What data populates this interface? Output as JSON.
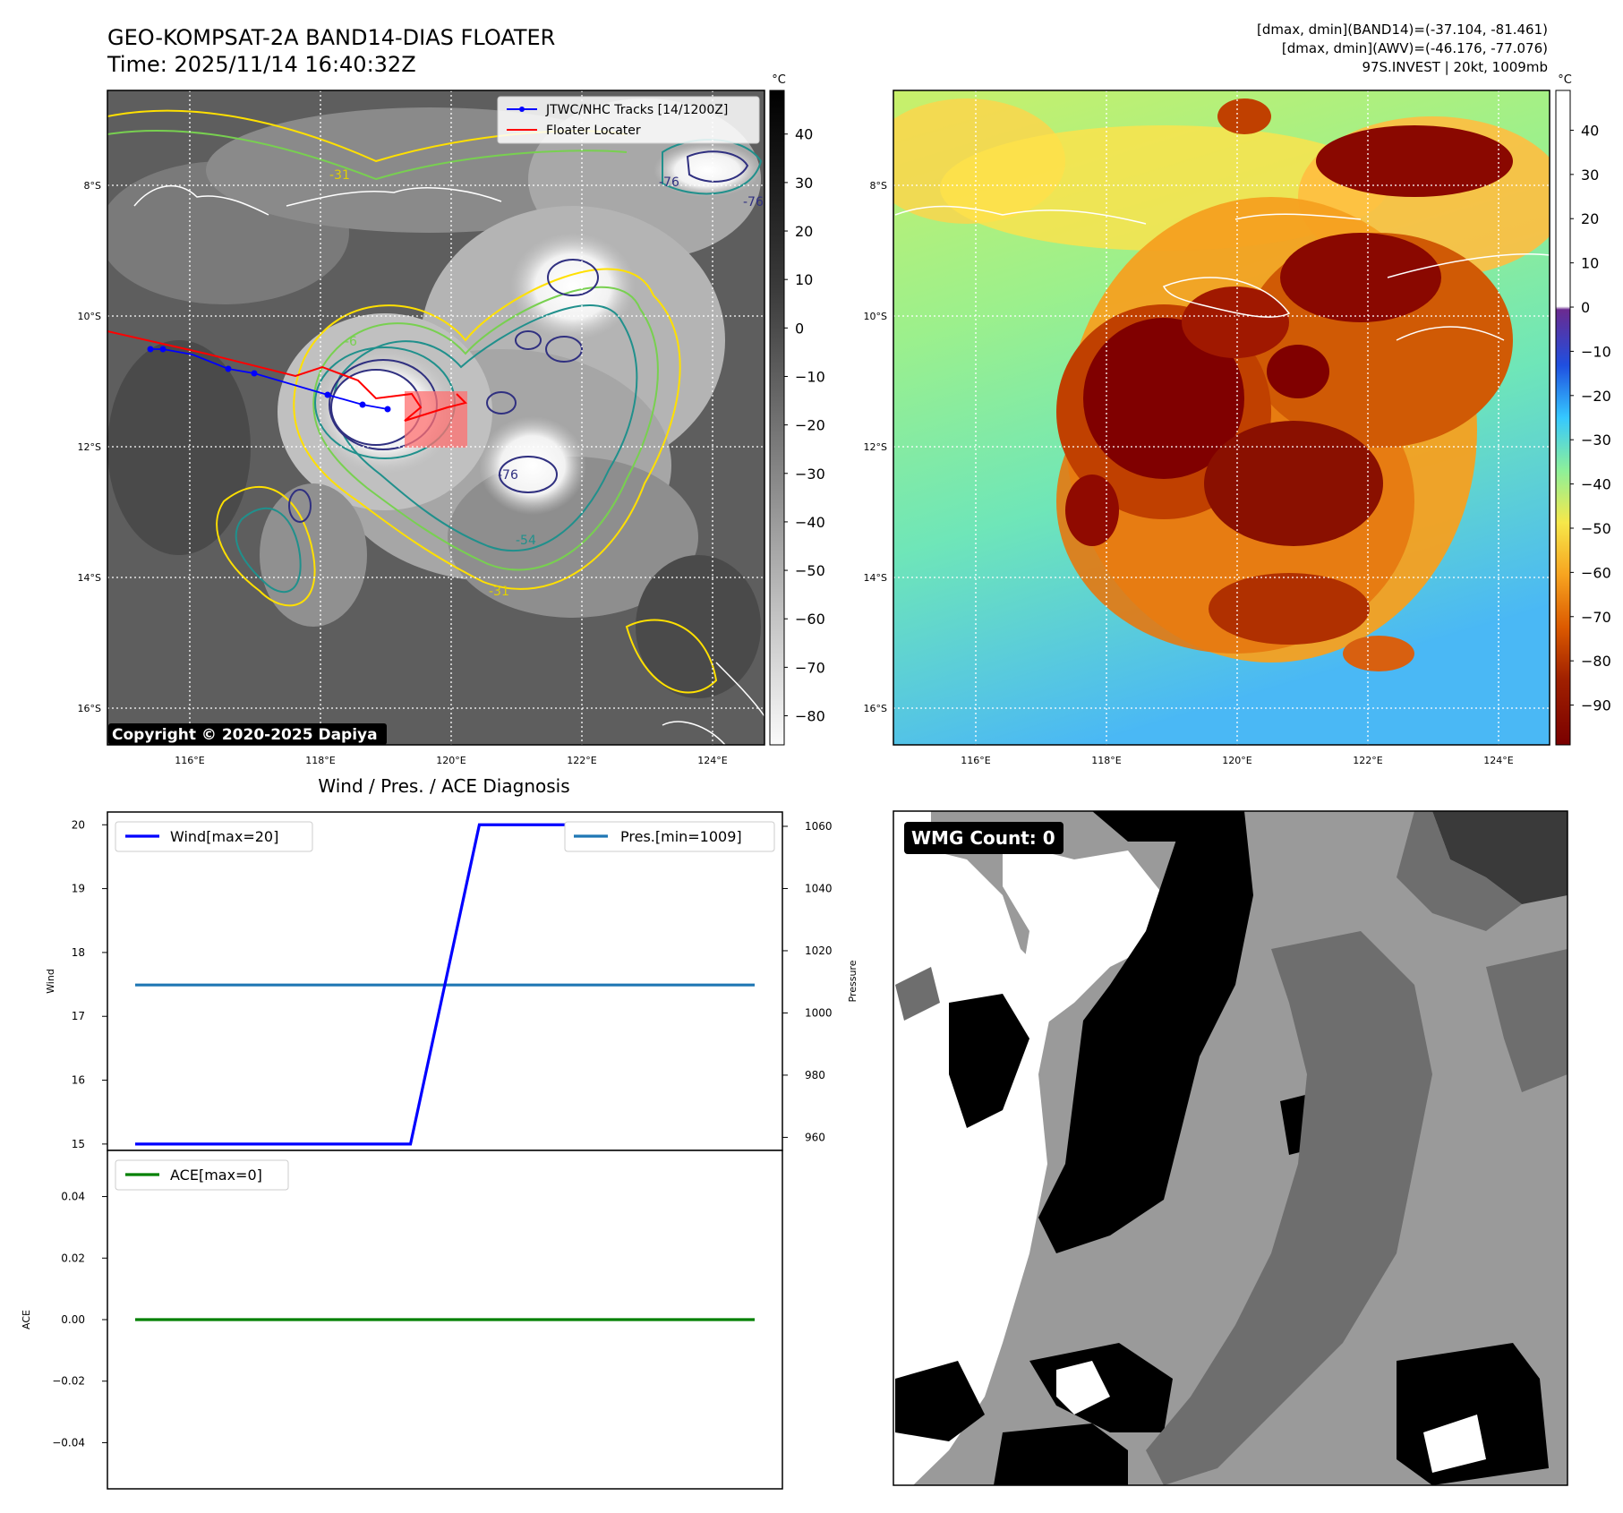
{
  "header": {
    "title_line1": "GEO-KOMPSAT-2A BAND14-DIAS FLOATER",
    "title_line2": "Time: 2025/11/14 16:40:32Z",
    "stats_line1": "[dmax, dmin](BAND14)=(-37.104, -81.461)",
    "stats_line2": "[dmax, dmin](AWV)=(-46.176, -77.076)",
    "stats_line3": "97S.INVEST | 20kt, 1009mb"
  },
  "copyright": "Copyright © 2020-2025 Dapiya",
  "colorbar_unit": "°C",
  "ir_map": {
    "legend": [
      "JTWC/NHC Tracks [14/1200Z]",
      "Floater Locater"
    ],
    "track_color": "#0000ff",
    "locator_color": "#ff0000",
    "contour_labels": [
      "-31",
      "-76",
      "-76",
      "-76",
      "-54",
      "-31",
      "-6"
    ],
    "lon_labels": [
      "116°E",
      "118°E",
      "120°E",
      "122°E",
      "124°E"
    ],
    "lat_labels": [
      "8°S",
      "10°S",
      "12°S",
      "14°S",
      "16°S"
    ],
    "colorbar_ticks": [
      "40",
      "30",
      "20",
      "10",
      "0",
      "−10",
      "−20",
      "−30",
      "−40",
      "−50",
      "−60",
      "−70",
      "−80"
    ]
  },
  "awv_map": {
    "lon_labels": [
      "116°E",
      "118°E",
      "120°E",
      "122°E",
      "124°E"
    ],
    "lat_labels": [
      "8°S",
      "10°S",
      "12°S",
      "14°S",
      "16°S"
    ],
    "colorbar_ticks": [
      "40",
      "30",
      "20",
      "10",
      "0",
      "−10",
      "−20",
      "−30",
      "−40",
      "−50",
      "−60",
      "−70",
      "−80",
      "−90"
    ]
  },
  "diagnosis_title": "Wind / Pres. / ACE Diagnosis",
  "wmg": {
    "label": "WMG Count: 0"
  },
  "chart_data": [
    {
      "type": "line",
      "title": "Wind / Pres. / ACE Diagnosis",
      "x": [
        0,
        1,
        2,
        3,
        4,
        5,
        6,
        7,
        8,
        9
      ],
      "series": [
        {
          "name": "Wind[max=20]",
          "axis": "left",
          "color": "#0000ff",
          "values": [
            15,
            15,
            15,
            15,
            15,
            20,
            20,
            20,
            20,
            20
          ]
        },
        {
          "name": "Pres.[min=1009]",
          "axis": "right",
          "color": "#1f77b4",
          "values": [
            1009,
            1009,
            1009,
            1009,
            1009,
            1009,
            1009,
            1009,
            1009,
            1009
          ]
        }
      ],
      "ylabel": "Wind",
      "ylim": [
        14.9,
        20.2
      ],
      "yticks": [
        "15",
        "16",
        "17",
        "18",
        "19",
        "20"
      ],
      "y2label": "Pressure",
      "y2lim": [
        955.8,
        1064.6
      ],
      "y2ticks": [
        "960",
        "980",
        "1000",
        "1020",
        "1040",
        "1060"
      ]
    },
    {
      "type": "line",
      "x": [
        0,
        1,
        2,
        3,
        4,
        5,
        6,
        7,
        8,
        9
      ],
      "series": [
        {
          "name": "ACE[max=0]",
          "color": "#008000",
          "values": [
            0,
            0,
            0,
            0,
            0,
            0,
            0,
            0,
            0,
            0
          ]
        }
      ],
      "ylabel": "ACE",
      "ylim": [
        -0.055,
        0.055
      ],
      "yticks": [
        "0.04",
        "0.02",
        "0.00",
        "−0.02",
        "−0.04"
      ]
    }
  ]
}
